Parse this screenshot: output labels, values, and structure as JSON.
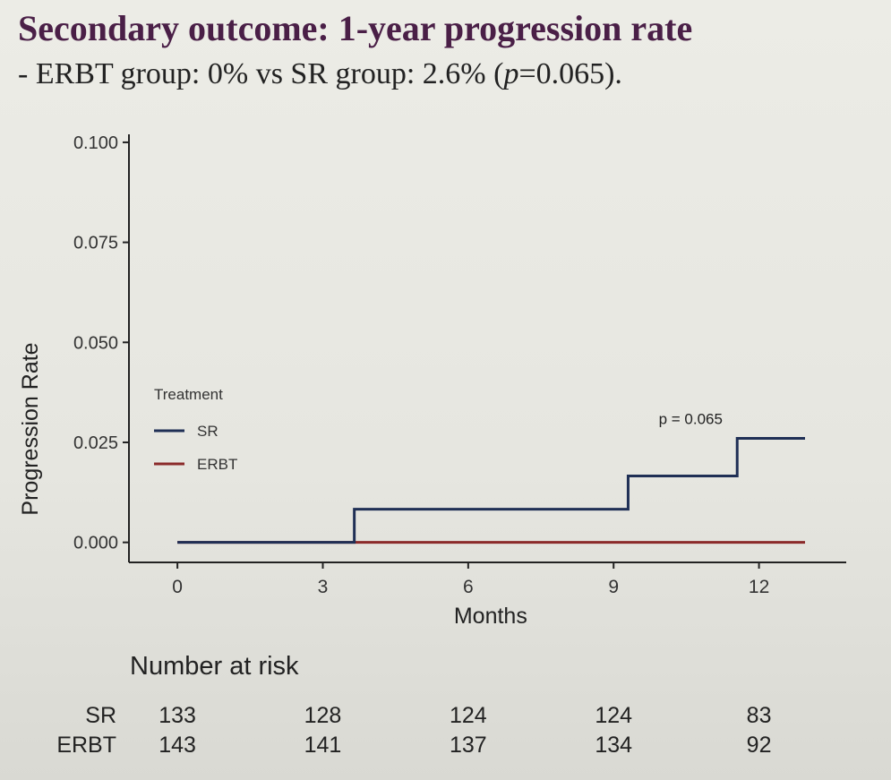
{
  "slide": {
    "title": "Secondary outcome: 1-year progression rate",
    "subtitle_prefix": "- ERBT group: 0% vs SR group: 2.6% (",
    "subtitle_p": "p",
    "subtitle_suffix": "=0.065)."
  },
  "chart_data": {
    "type": "line",
    "step": true,
    "title": "",
    "xlabel": "Months",
    "ylabel": "Progression Rate",
    "xlim": [
      -1,
      13.8
    ],
    "ylim": [
      -0.005,
      0.102
    ],
    "x_ticks": [
      0,
      3,
      6,
      9,
      12
    ],
    "y_ticks": [
      0.0,
      0.025,
      0.05,
      0.075,
      0.1
    ],
    "x_tick_labels": [
      "0",
      "3",
      "6",
      "9",
      "12"
    ],
    "y_tick_labels": [
      "0.000",
      "0.025",
      "0.050",
      "0.075",
      "0.100"
    ],
    "grid": false,
    "legend_title": "Treatment",
    "legend_placement": "inside-left",
    "annotation": {
      "text": "p = 0.065",
      "x": 10.3,
      "y": 0.0285
    },
    "series": [
      {
        "name": "SR",
        "color": "#1f2f55",
        "x": [
          0,
          3.65,
          3.65,
          9.3,
          9.3,
          11.55,
          11.55,
          12.95
        ],
        "y": [
          0,
          0,
          0.0083,
          0.0083,
          0.0166,
          0.0166,
          0.026,
          0.026
        ]
      },
      {
        "name": "ERBT",
        "color": "#8b2a2a",
        "x": [
          0,
          12.95
        ],
        "y": [
          0,
          0
        ]
      }
    ]
  },
  "risk_table": {
    "title": "Number at risk",
    "rows": [
      {
        "label": "SR",
        "values": [
          "133",
          "128",
          "124",
          "124",
          "83"
        ]
      },
      {
        "label": "ERBT",
        "values": [
          "143",
          "141",
          "137",
          "134",
          "92"
        ]
      }
    ]
  }
}
